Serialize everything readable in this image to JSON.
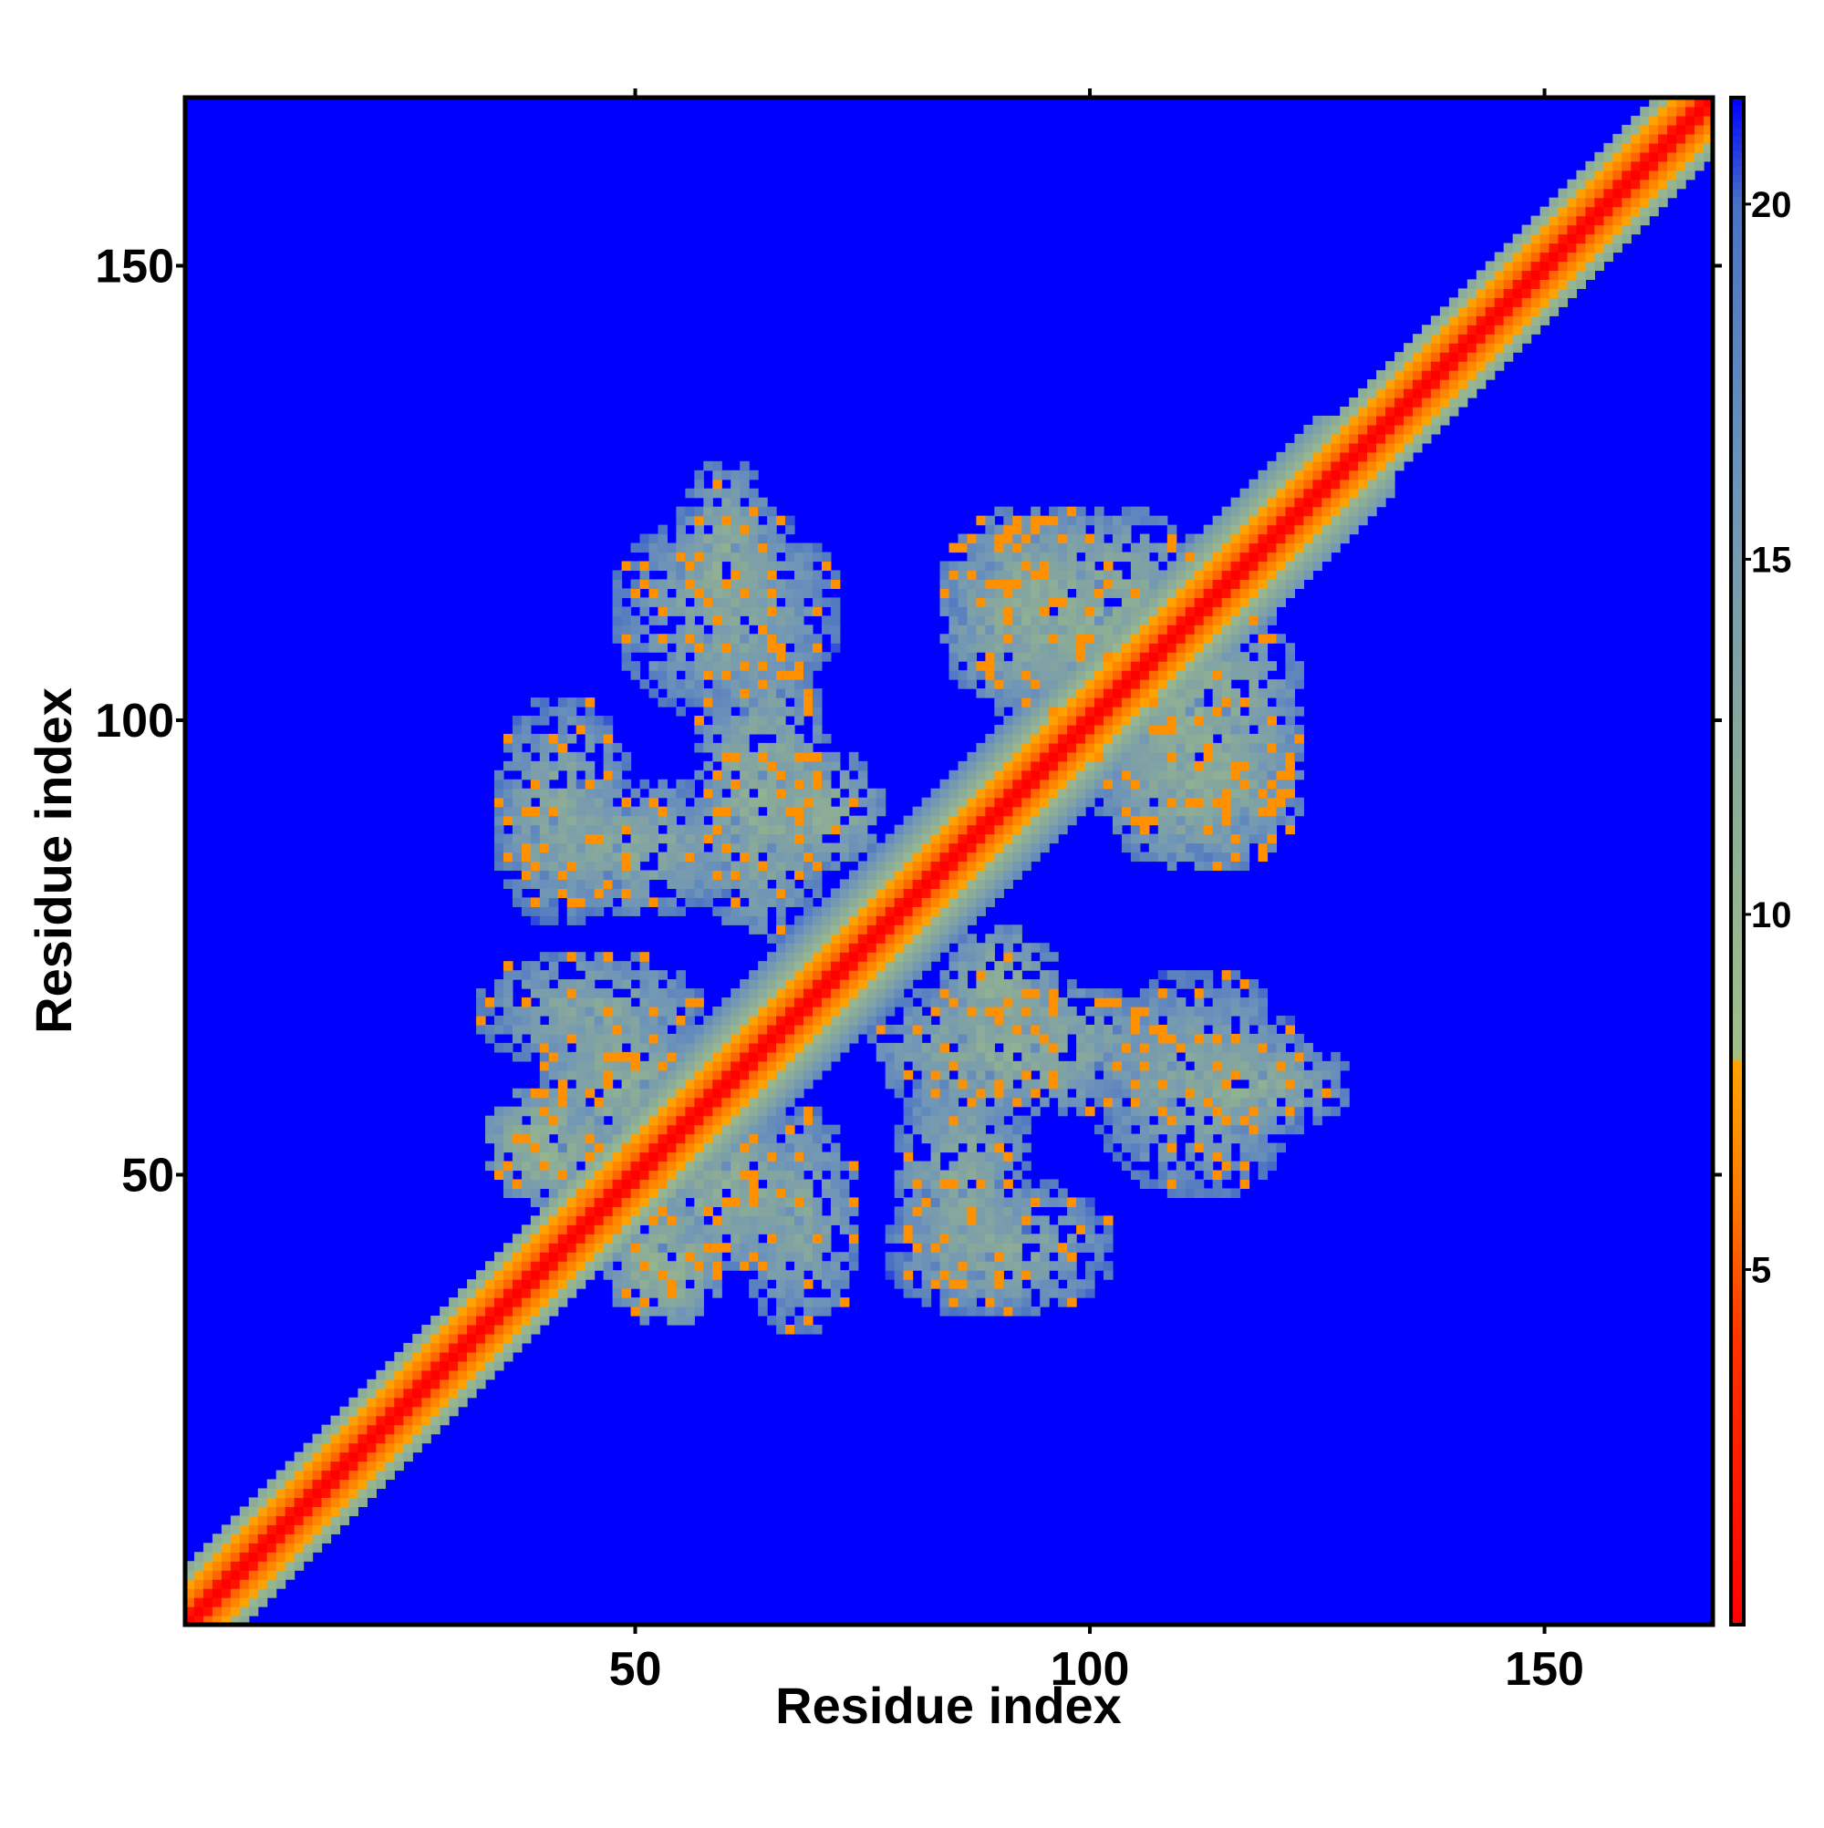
{
  "chart_data": {
    "type": "heatmap",
    "title": "",
    "xlabel": "Residue index",
    "ylabel": "Residue index",
    "xlim": [
      1,
      168
    ],
    "ylim": [
      1,
      168
    ],
    "x_ticks": [
      {
        "value": 50,
        "label": "50"
      },
      {
        "value": 100,
        "label": "100"
      },
      {
        "value": 150,
        "label": "150"
      }
    ],
    "y_ticks": [
      {
        "value": 50,
        "label": "50"
      },
      {
        "value": 100,
        "label": "100"
      },
      {
        "value": 150,
        "label": "150"
      }
    ],
    "colorbar": {
      "range": [
        0,
        21.5
      ],
      "ticks": [
        {
          "value": 5,
          "label": "5"
        },
        {
          "value": 10,
          "label": "10"
        },
        {
          "value": 15,
          "label": "15"
        },
        {
          "value": 20,
          "label": "20"
        }
      ],
      "colors": [
        {
          "value": 0,
          "color": "#ff0000"
        },
        {
          "value": 4,
          "color": "#ff3300"
        },
        {
          "value": 6,
          "color": "#ff7a00"
        },
        {
          "value": 8,
          "color": "#ffa500"
        },
        {
          "value": 8.01,
          "color": "#9fc08a"
        },
        {
          "value": 12,
          "color": "#8aaa99"
        },
        {
          "value": 16,
          "color": "#6f95b8"
        },
        {
          "value": 20,
          "color": "#4a72c4"
        },
        {
          "value": 21.5,
          "color": "#0000ff"
        }
      ]
    },
    "background_value": 21.5,
    "description": "Residue-residue distance map; values capped at ~21.5 (blue) beyond cutoff.",
    "diagonal": {
      "value": 0,
      "near_width": 1.5,
      "mid_width": 4,
      "outer_width": 6
    },
    "contact_regions": [
      {
        "cx": 60,
        "cy": 112,
        "rx": 13,
        "ry": 12,
        "value": 13
      },
      {
        "cx": 50,
        "cy": 86,
        "rx": 14,
        "ry": 8,
        "value": 13
      },
      {
        "cx": 45,
        "cy": 68,
        "rx": 13,
        "ry": 7,
        "value": 13
      },
      {
        "cx": 60,
        "cy": 48,
        "rx": 10,
        "ry": 9,
        "value": 12
      },
      {
        "cx": 90,
        "cy": 42,
        "rx": 13,
        "ry": 8,
        "value": 13
      },
      {
        "cx": 92,
        "cy": 64,
        "rx": 17,
        "ry": 8,
        "value": 12
      },
      {
        "cx": 117,
        "cy": 60,
        "rx": 12,
        "ry": 6,
        "value": 12
      },
      {
        "cx": 100,
        "cy": 112,
        "rx": 16,
        "ry": 12,
        "value": 12
      },
      {
        "cx": 112,
        "cy": 93,
        "rx": 12,
        "ry": 10,
        "value": 12
      },
      {
        "cx": 40,
        "cy": 53,
        "rx": 7,
        "ry": 7,
        "value": 11
      },
      {
        "cx": 70,
        "cy": 90,
        "rx": 8,
        "ry": 7,
        "value": 12
      }
    ],
    "hot_spots": [
      {
        "cx": 139,
        "cy": 139,
        "r": 5,
        "value": 7
      }
    ]
  }
}
